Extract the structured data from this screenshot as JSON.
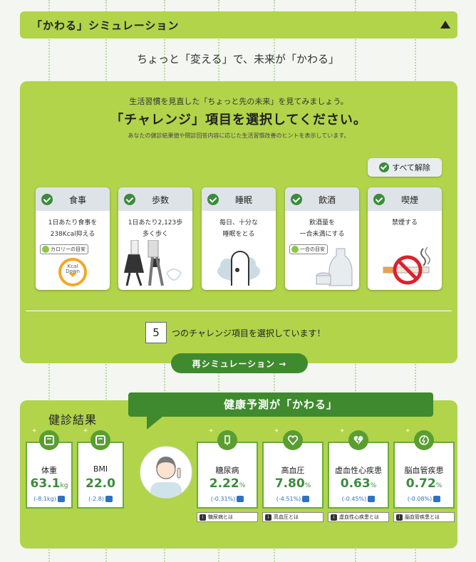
{
  "header": {
    "title": "「かわる」シミュレーション",
    "toggle_icon": "triangle-up-icon"
  },
  "tagline": "ちょっと「変える」で、未来が「かわる」",
  "panel": {
    "intro": "生活習慣を見直した「ちょっと先の未来」を見てみましょう。",
    "heading": "「チャレンジ」項目を選択してください。",
    "note": "あなたの健診結果値や問診回答内容に応じた生活習慣改善のヒントを表示しています。",
    "unselect_all": "すべて解除",
    "cards": [
      {
        "title": "食事",
        "desc1": "1日あたり食事を",
        "desc2": "238Kcal抑える",
        "tag": "カロリーの目安",
        "extra": "Kcal Down"
      },
      {
        "title": "歩数",
        "desc1": "1日あたり2,123歩",
        "desc2": "多く歩く",
        "tag": "",
        "extra": ""
      },
      {
        "title": "睡眠",
        "desc1": "毎日、十分な",
        "desc2": "睡眠をとる",
        "tag": "",
        "extra": ""
      },
      {
        "title": "飲酒",
        "desc1": "飲酒量を",
        "desc2": "一合未満にする",
        "tag": "一合の目安",
        "extra": ""
      },
      {
        "title": "喫煙",
        "desc1": "禁煙する",
        "desc2": "",
        "tag": "",
        "extra": ""
      }
    ],
    "count": "5",
    "count_text": "つのチャレンジ項目を選択しています！"
  },
  "resimulate": "再シミュレーション →",
  "results": {
    "heading": "健診結果",
    "banner": "健康予測が「かわる」",
    "metrics": [
      {
        "label": "体重",
        "value": "63.1",
        "unit": "kg",
        "delta": "(-8.1kg)"
      },
      {
        "label": "BMI",
        "value": "22.0",
        "unit": "",
        "delta": "(-2.8)"
      }
    ],
    "risks": [
      {
        "label": "糖尿病",
        "value": "2.22",
        "unit": "%",
        "delta": "(-0.31%)",
        "info": "糖尿病とは"
      },
      {
        "label": "高血圧",
        "value": "7.80",
        "unit": "%",
        "delta": "(-4.51%)",
        "info": "高血圧とは"
      },
      {
        "label": "虚血性心疾患",
        "value": "0.63",
        "unit": "%",
        "delta": "(-0.45%)",
        "info": "虚血性心疾患とは"
      },
      {
        "label": "脳血管疾患",
        "value": "0.72",
        "unit": "%",
        "delta": "(-0.08%)",
        "info": "脳血管疾患とは"
      }
    ]
  },
  "colors": {
    "lime": "#b1d44b",
    "green": "#3f8a2e",
    "blue": "#2f72c4"
  }
}
